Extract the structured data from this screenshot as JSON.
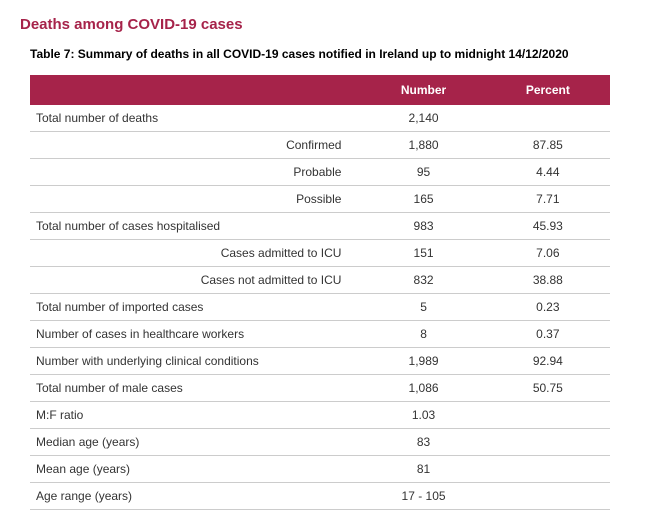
{
  "section_title": "Deaths among COVID-19 cases",
  "table_caption": "Table 7: Summary of deaths in all COVID-19 cases notified in Ireland up to midnight 14/12/2020",
  "colors": {
    "accent": "#a6234a",
    "header_text": "#ffffff",
    "body_text": "#333333",
    "border": "#cccccc",
    "background": "#ffffff"
  },
  "table": {
    "columns": [
      {
        "key": "label",
        "header": ""
      },
      {
        "key": "number",
        "header": "Number"
      },
      {
        "key": "percent",
        "header": "Percent"
      }
    ],
    "rows": [
      {
        "label": "Total number of deaths",
        "number": "2,140",
        "percent": "",
        "indent": false
      },
      {
        "label": "Confirmed",
        "number": "1,880",
        "percent": "87.85",
        "indent": true
      },
      {
        "label": "Probable",
        "number": "95",
        "percent": "4.44",
        "indent": true
      },
      {
        "label": "Possible",
        "number": "165",
        "percent": "7.71",
        "indent": true
      },
      {
        "label": "Total number of cases hospitalised",
        "number": "983",
        "percent": "45.93",
        "indent": false
      },
      {
        "label": "Cases admitted to ICU",
        "number": "151",
        "percent": "7.06",
        "indent": true
      },
      {
        "label": "Cases not admitted to ICU",
        "number": "832",
        "percent": "38.88",
        "indent": true
      },
      {
        "label": "Total number of imported cases",
        "number": "5",
        "percent": "0.23",
        "indent": false
      },
      {
        "label": "Number of cases in healthcare workers",
        "number": "8",
        "percent": "0.37",
        "indent": false
      },
      {
        "label": "Number with underlying clinical conditions",
        "number": "1,989",
        "percent": "92.94",
        "indent": false
      },
      {
        "label": "Total number of male cases",
        "number": "1,086",
        "percent": "50.75",
        "indent": false
      },
      {
        "label": "M:F ratio",
        "number": "1.03",
        "percent": "",
        "indent": false
      },
      {
        "label": "Median age (years)",
        "number": "83",
        "percent": "",
        "indent": false
      },
      {
        "label": "Mean age (years)",
        "number": "81",
        "percent": "",
        "indent": false
      },
      {
        "label": "Age range (years)",
        "number": "17 - 105",
        "percent": "",
        "indent": false
      }
    ]
  }
}
